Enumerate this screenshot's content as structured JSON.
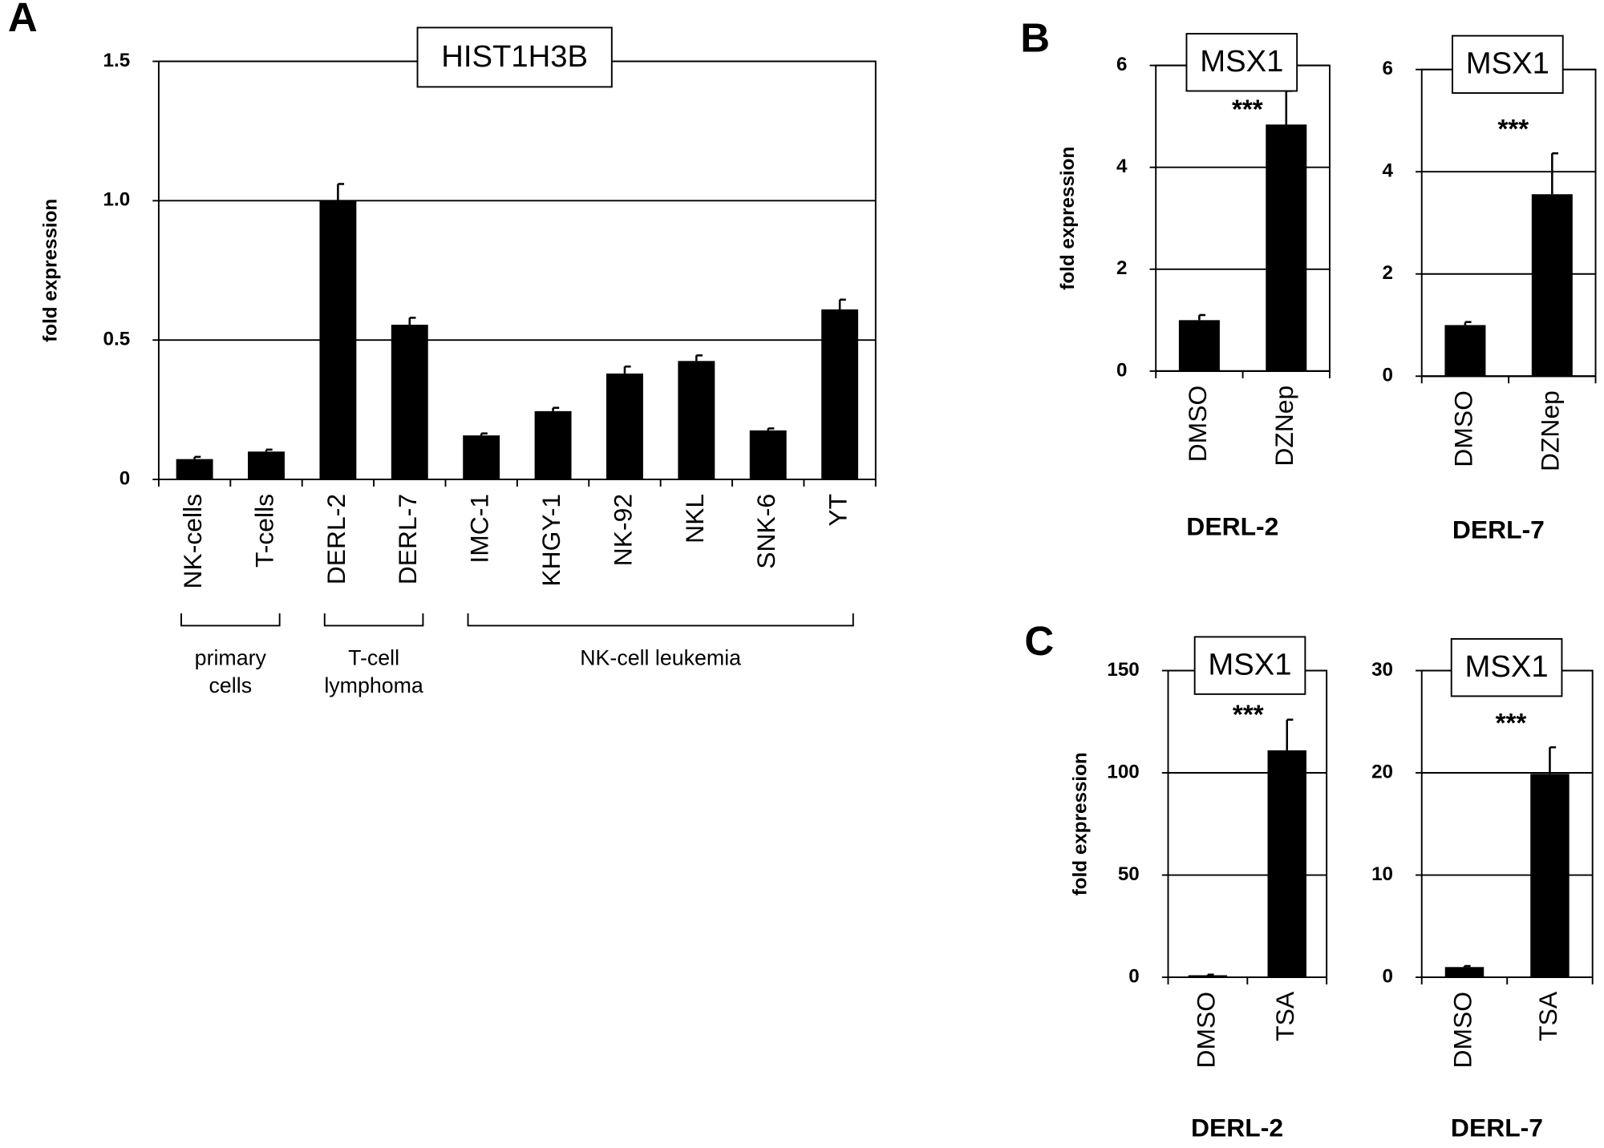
{
  "chart_data": [
    {
      "type": "bar",
      "panel": "A",
      "title": "HIST1H3B",
      "ylabel": "fold expression",
      "categories": [
        "NK-cells",
        "T-cells",
        "DERL-2",
        "DERL-7",
        "IMC-1",
        "KHGY-1",
        "NK-92",
        "NKL",
        "SNK-6",
        "YT"
      ],
      "values": [
        0.073,
        0.1,
        1.0,
        0.555,
        0.158,
        0.245,
        0.38,
        0.425,
        0.176,
        0.61
      ],
      "errors": [
        0.008,
        0.007,
        0.06,
        0.025,
        0.007,
        0.012,
        0.025,
        0.02,
        0.007,
        0.035
      ],
      "groups": [
        {
          "label_lines": [
            "primary",
            "cells"
          ],
          "from": 0,
          "to": 1
        },
        {
          "label_lines": [
            "T-cell",
            "lymphoma"
          ],
          "from": 2,
          "to": 3
        },
        {
          "label_lines": [
            "NK-cell leukemia"
          ],
          "from": 4,
          "to": 9
        }
      ],
      "color": "#000000",
      "ylim": [
        0,
        1.5
      ],
      "yticks": [
        0,
        0.5,
        {
          "value": 1,
          "label": "1.0"
        },
        1.5
      ],
      "grid": true
    },
    {
      "type": "bar",
      "panel": "B",
      "title": "MSX1",
      "ylabel": "fold expression",
      "xlabel": "DERL-2",
      "categories": [
        "DMSO",
        "DZNep"
      ],
      "values": [
        1.0,
        4.84
      ],
      "errors": [
        0.1,
        0.66
      ],
      "annotations": [
        null,
        "***"
      ],
      "color": "#000000",
      "ylim": [
        0,
        6
      ],
      "yticks": [
        0,
        2,
        4,
        6
      ],
      "grid": true
    },
    {
      "type": "bar",
      "title": "MSX1",
      "xlabel": "DERL-7",
      "categories": [
        "DMSO",
        "DZNep"
      ],
      "values": [
        1.0,
        3.56
      ],
      "errors": [
        0.06,
        0.8
      ],
      "annotations": [
        null,
        "***"
      ],
      "color": "#000000",
      "ylim": [
        0,
        6
      ],
      "yticks": [
        0,
        2,
        4,
        6
      ],
      "grid": true
    },
    {
      "type": "bar",
      "panel": "C",
      "title": "MSX1",
      "ylabel": "fold expression",
      "xlabel": "DERL-2",
      "categories": [
        "DMSO",
        "TSA"
      ],
      "values": [
        1,
        111
      ],
      "errors": [
        0.3,
        15
      ],
      "annotations": [
        null,
        "***"
      ],
      "color": "#000000",
      "ylim": [
        0,
        150
      ],
      "yticks": [
        0,
        50,
        100,
        150
      ],
      "grid": true
    },
    {
      "type": "bar",
      "title": "MSX1",
      "xlabel": "DERL-7",
      "categories": [
        "DMSO",
        "TSA"
      ],
      "values": [
        1.0,
        19.9
      ],
      "errors": [
        0.1,
        2.6
      ],
      "annotations": [
        null,
        "***"
      ],
      "color": "#000000",
      "ylim": [
        0,
        30
      ],
      "yticks": [
        0,
        10,
        20,
        30
      ],
      "grid": true
    }
  ]
}
